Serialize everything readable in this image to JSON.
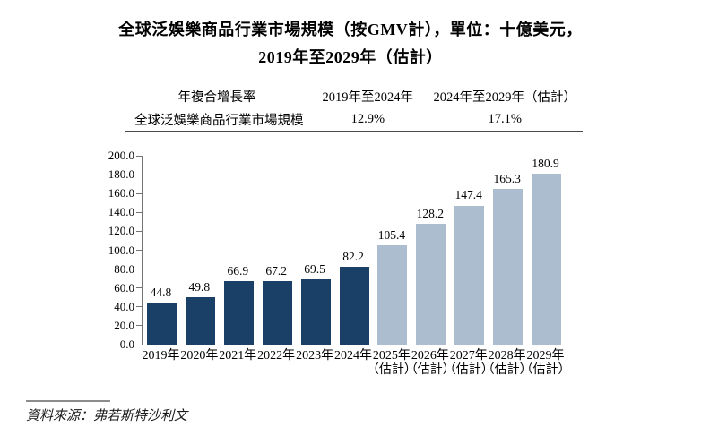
{
  "title": {
    "line1": "全球泛娛樂商品行業市場規模（按GMV計），單位：十億美元，",
    "line2": "2019年至2029年（估計）"
  },
  "cagr_table": {
    "headers": [
      "年複合增長率",
      "2019年至2024年",
      "2024年至2029年（估計）"
    ],
    "rows": [
      {
        "label": "全球泛娛樂商品行業市場規模",
        "cagr_2019_2024": "12.9%",
        "cagr_2024_2029": "17.1%"
      }
    ]
  },
  "chart_data": {
    "type": "bar",
    "title": "全球泛娛樂商品行業市場規模（按GMV計），單位：十億美元，2019年至2029年（估計）",
    "categories": [
      "2019年",
      "2020年",
      "2021年",
      "2022年",
      "2023年",
      "2024年",
      "2025年",
      "2026年",
      "2027年",
      "2028年",
      "2029年"
    ],
    "estimated": [
      false,
      false,
      false,
      false,
      false,
      false,
      true,
      true,
      true,
      true,
      true
    ],
    "estimate_suffix": "（估計）",
    "values": [
      44.8,
      49.8,
      66.9,
      67.2,
      69.5,
      82.2,
      105.4,
      128.2,
      147.4,
      165.3,
      180.9
    ],
    "xlabel": "",
    "ylabel": "",
    "ylim": [
      0,
      200
    ],
    "ytick_step": 20,
    "ytick_decimals": 1,
    "grid": false,
    "legend": "none",
    "colors": {
      "actual_bar": "#1A4067",
      "estimate_bar": "#ACBDCF",
      "axis": "#737373",
      "text": "#000000"
    }
  },
  "source": {
    "text": "資料來源：弗若斯特沙利文"
  }
}
